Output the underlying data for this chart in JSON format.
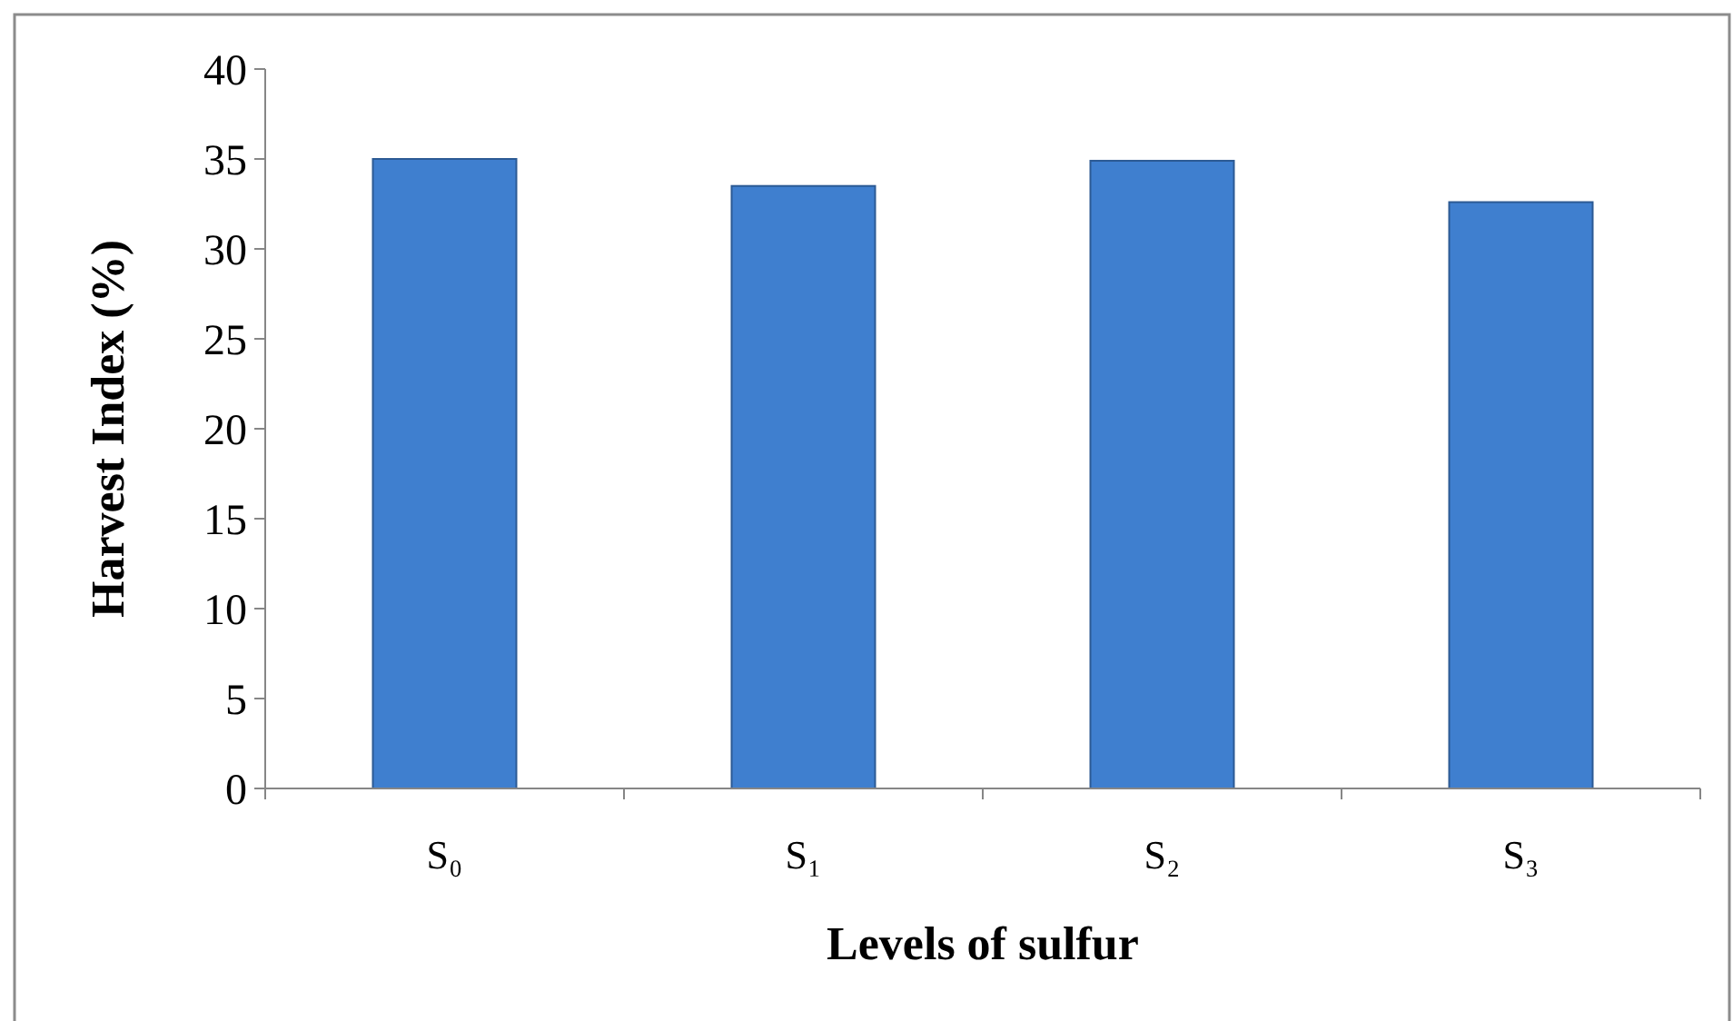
{
  "chart_data": {
    "type": "bar",
    "xlabel": "Levels of sulfur",
    "ylabel": "Harvest Index (%)",
    "categories": [
      "S₀",
      "S₁",
      "S₂",
      "S₃"
    ],
    "values": [
      35.0,
      33.5,
      34.9,
      32.6
    ],
    "color": "#3f7fcf",
    "ylim": [
      0,
      40
    ],
    "yticks": [
      0,
      5,
      10,
      15,
      20,
      25,
      30,
      35,
      40
    ],
    "grid": false
  }
}
